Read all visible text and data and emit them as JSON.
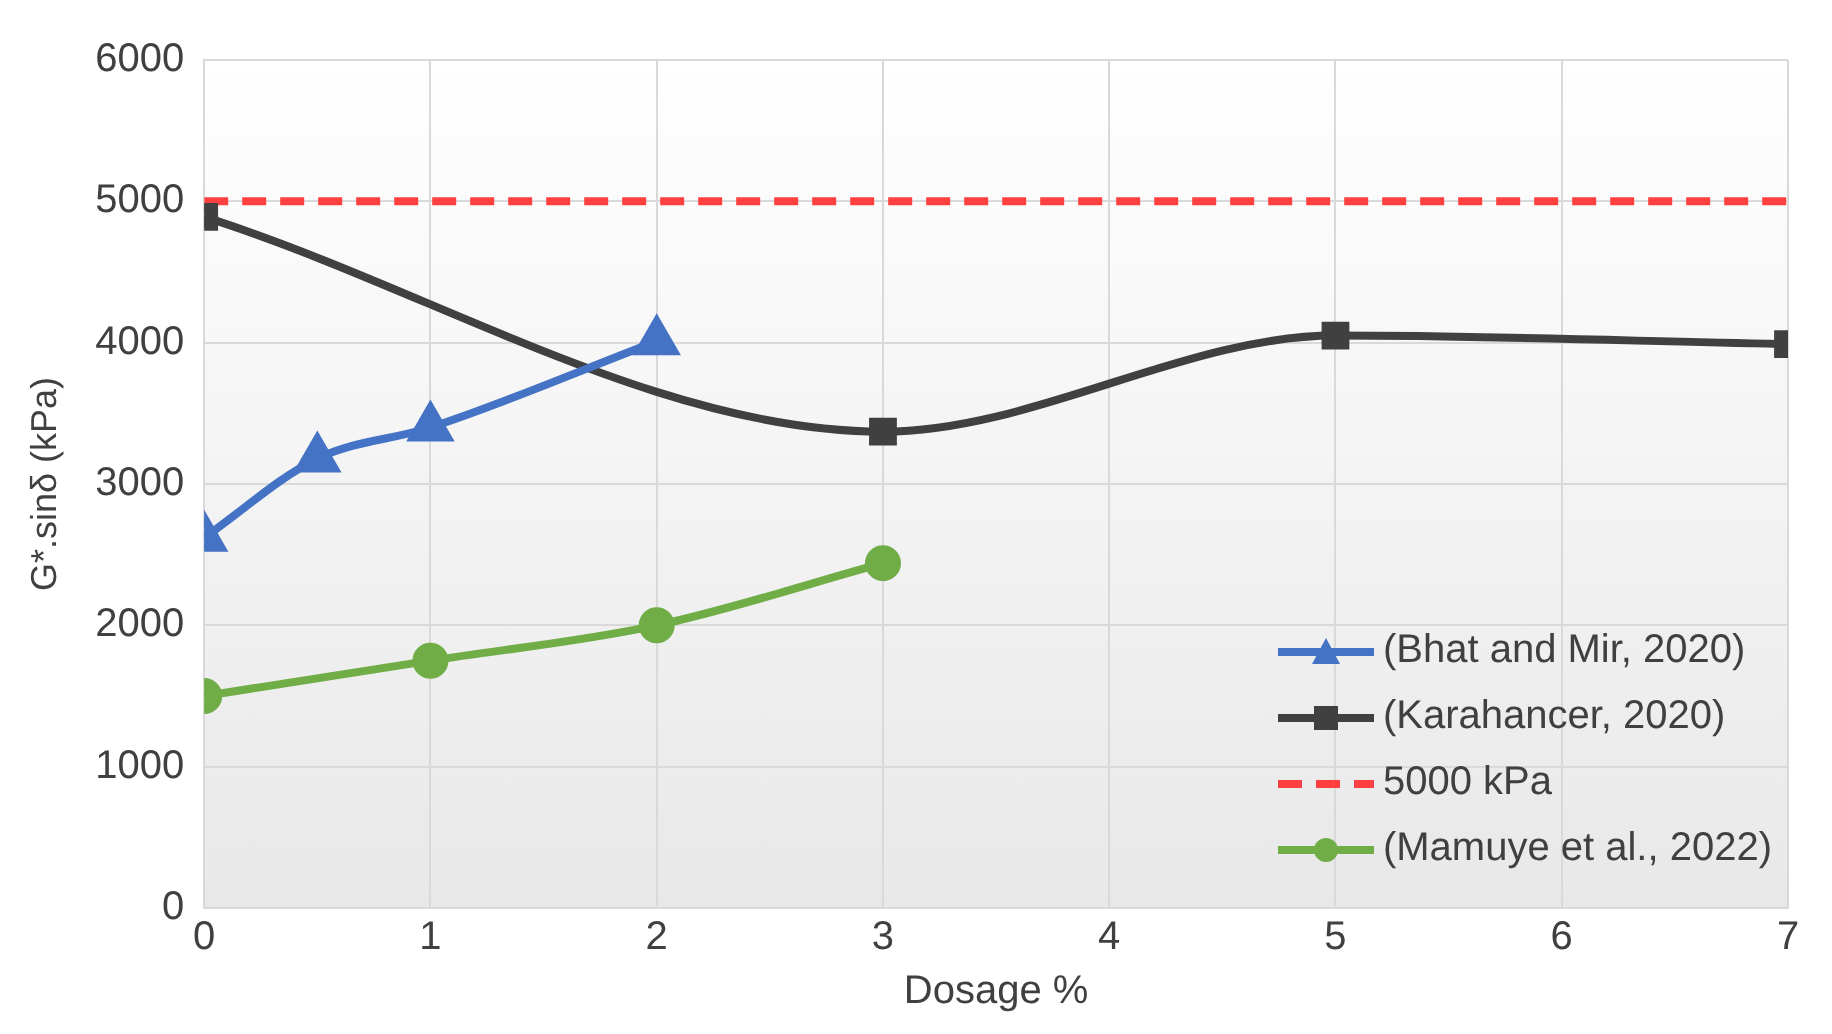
{
  "chart_data": {
    "type": "line",
    "xlabel": "Dosage %",
    "ylabel": "G*.sinδ (kPa)",
    "xlim": [
      0,
      7
    ],
    "xticks": [
      0,
      1,
      2,
      3,
      4,
      5,
      6,
      7
    ],
    "ylim": [
      0,
      6000
    ],
    "yticks": [
      0,
      1000,
      2000,
      3000,
      4000,
      5000,
      6000
    ],
    "grid": true,
    "legend": "bottom right",
    "series": [
      {
        "name": "(Bhat and Mir, 2020)",
        "color": "#4472c4",
        "marker": "triangle",
        "x": [
          0,
          0.5,
          1,
          2
        ],
        "values": [
          2620,
          3180,
          3400,
          4010
        ]
      },
      {
        "name": "(Karahancer, 2020)",
        "color": "#404040",
        "marker": "square",
        "x": [
          0,
          3,
          5,
          7
        ],
        "values": [
          4890,
          3370,
          4050,
          3990
        ]
      },
      {
        "name": "5000 kPa",
        "color": "#ff4040",
        "marker": "none",
        "line_style": "dashed",
        "x": [
          0,
          7
        ],
        "values": [
          5000,
          5000
        ]
      },
      {
        "name": "(Mamuye et al., 2022)",
        "color": "#70ad47",
        "marker": "circle",
        "x": [
          0,
          1,
          2,
          3
        ],
        "values": [
          1500,
          1750,
          2000,
          2440
        ]
      }
    ]
  }
}
